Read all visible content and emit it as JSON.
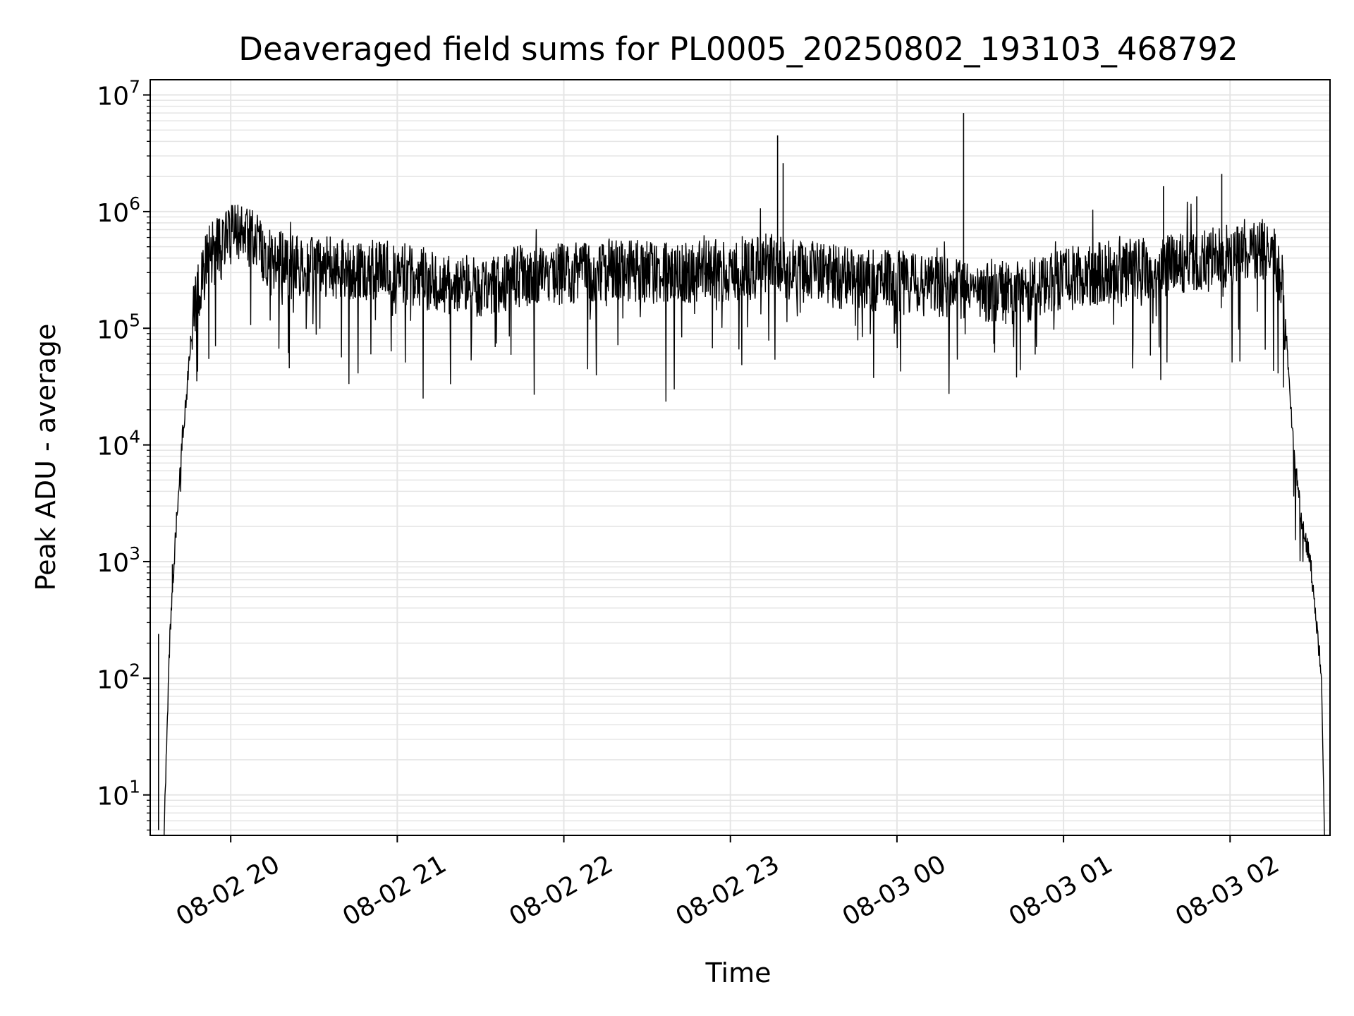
{
  "chart_data": {
    "type": "line",
    "title": "Deaveraged field sums for PL0005_20250802_193103_468792",
    "xlabel": "Time",
    "ylabel": "Peak ADU - average",
    "yscale": "log",
    "grid": true,
    "line_color": "#000000",
    "grid_color": "#e5e5e5",
    "xlim": [
      "2025-08-02T19:31",
      "2025-08-03T02:36"
    ],
    "ylim": [
      4.5,
      13500000
    ],
    "x_ticks": [
      {
        "x": "2025-08-02T20:00",
        "label": "08-02 20"
      },
      {
        "x": "2025-08-02T21:00",
        "label": "08-02 21"
      },
      {
        "x": "2025-08-02T22:00",
        "label": "08-02 22"
      },
      {
        "x": "2025-08-02T23:00",
        "label": "08-02 23"
      },
      {
        "x": "2025-08-03T00:00",
        "label": "08-03 00"
      },
      {
        "x": "2025-08-03T01:00",
        "label": "08-03 01"
      },
      {
        "x": "2025-08-03T02:00",
        "label": "08-03 02"
      }
    ],
    "y_ticks": [
      {
        "value": 10,
        "base": "10",
        "exp": "1"
      },
      {
        "value": 100,
        "base": "10",
        "exp": "2"
      },
      {
        "value": 1000,
        "base": "10",
        "exp": "3"
      },
      {
        "value": 10000,
        "base": "10",
        "exp": "4"
      },
      {
        "value": 100000,
        "base": "10",
        "exp": "5"
      },
      {
        "value": 1000000,
        "base": "10",
        "exp": "6"
      },
      {
        "value": 10000000,
        "base": "10",
        "exp": "7"
      }
    ],
    "series": [
      {
        "x": [
          "2025-08-02T19:36",
          "2025-08-02T19:38",
          "2025-08-02T19:40",
          "2025-08-02T19:42",
          "2025-08-02T19:44",
          "2025-08-02T19:46",
          "2025-08-02T19:48",
          "2025-08-02T19:50",
          "2025-08-02T19:52",
          "2025-08-02T19:54",
          "2025-08-02T19:56",
          "2025-08-02T19:58",
          "2025-08-02T20:00",
          "2025-08-02T20:03",
          "2025-08-02T20:06",
          "2025-08-02T20:08",
          "2025-08-02T20:10",
          "2025-08-02T20:12",
          "2025-08-02T20:15",
          "2025-08-02T20:20",
          "2025-08-02T20:30",
          "2025-08-02T20:45",
          "2025-08-02T21:00",
          "2025-08-02T21:15",
          "2025-08-02T21:30",
          "2025-08-02T21:45",
          "2025-08-02T22:00",
          "2025-08-02T22:15",
          "2025-08-02T22:30",
          "2025-08-02T22:45",
          "2025-08-02T23:00",
          "2025-08-02T23:15",
          "2025-08-02T23:30",
          "2025-08-02T23:45",
          "2025-08-03T00:00",
          "2025-08-03T00:15",
          "2025-08-03T00:30",
          "2025-08-03T00:45",
          "2025-08-03T01:00",
          "2025-08-03T01:15",
          "2025-08-03T01:30",
          "2025-08-03T01:45",
          "2025-08-03T02:00",
          "2025-08-03T02:05",
          "2025-08-03T02:10",
          "2025-08-03T02:15",
          "2025-08-03T02:18",
          "2025-08-03T02:20",
          "2025-08-03T02:23",
          "2025-08-03T02:26",
          "2025-08-03T02:29",
          "2025-08-03T02:31",
          "2025-08-03T02:33",
          "2025-08-03T02:34"
        ],
        "y": [
          5,
          200,
          1500,
          8000,
          25000,
          100000,
          200000,
          300000,
          400000,
          450000,
          500000,
          550000,
          600000,
          650000,
          650000,
          600000,
          500000,
          450000,
          400000,
          350000,
          350000,
          320000,
          300000,
          250000,
          220000,
          280000,
          300000,
          320000,
          300000,
          300000,
          320000,
          350000,
          300000,
          260000,
          250000,
          220000,
          200000,
          200000,
          260000,
          300000,
          320000,
          350000,
          420000,
          480000,
          500000,
          450000,
          300000,
          100000,
          8000,
          2000,
          1000,
          300,
          100,
          5
        ]
      }
    ],
    "spikes": [
      {
        "x": "2025-08-02T23:17",
        "y": 4500000
      },
      {
        "x": "2025-08-02T23:19",
        "y": 2600000
      },
      {
        "x": "2025-08-03T00:24",
        "y": 7000000
      },
      {
        "x": "2025-08-03T01:57",
        "y": 2100000
      },
      {
        "x": "2025-08-03T01:36",
        "y": 1650000
      },
      {
        "x": "2025-08-03T01:48",
        "y": 1350000
      },
      {
        "x": "2025-08-02T19:39",
        "y": 950
      },
      {
        "x": "2025-08-02T19:34",
        "y": 240
      }
    ]
  }
}
